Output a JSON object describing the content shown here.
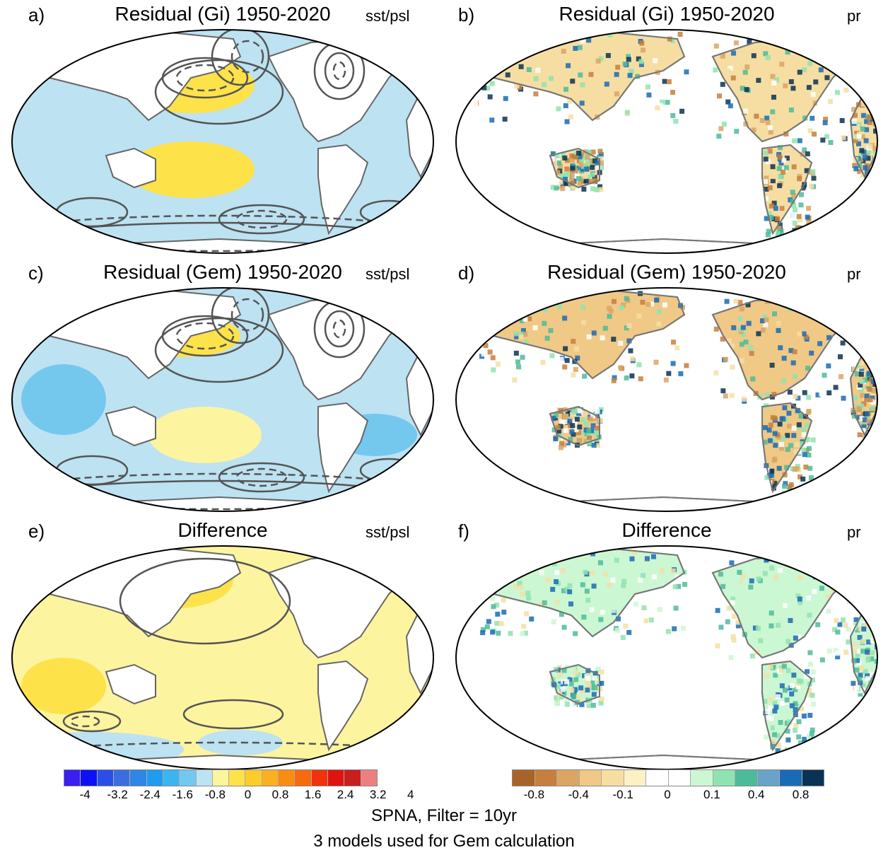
{
  "panels": [
    {
      "label": "a)",
      "title": "Residual (Gi) 1950-2020",
      "var": "sst/psl"
    },
    {
      "label": "b)",
      "title": "Residual (Gi) 1950-2020",
      "var": "pr"
    },
    {
      "label": "c)",
      "title": "Residual (Gem) 1950-2020",
      "var": "sst/psl"
    },
    {
      "label": "d)",
      "title": "Residual (Gem) 1950-2020",
      "var": "pr"
    },
    {
      "label": "e)",
      "title": "Difference",
      "var": "sst/psl"
    },
    {
      "label": "f)",
      "title": "Difference",
      "var": "pr"
    }
  ],
  "footer": {
    "line1": "SPNA, Filter = 10yr",
    "line2": "3 models used for Gem calculation"
  },
  "chart_data": [
    {
      "type": "heatmap",
      "title": "Residual (Gi) 1950-2020",
      "panel": "a)",
      "variable": "sst/psl",
      "description": "global SST shading with PSL contours"
    },
    {
      "type": "heatmap",
      "title": "Residual (Gi) 1950-2020",
      "panel": "b)",
      "variable": "pr"
    },
    {
      "type": "heatmap",
      "title": "Residual (Gem) 1950-2020",
      "panel": "c)",
      "variable": "sst/psl"
    },
    {
      "type": "heatmap",
      "title": "Residual (Gem) 1950-2020",
      "panel": "d)",
      "variable": "pr"
    },
    {
      "type": "heatmap",
      "title": "Difference",
      "panel": "e)",
      "variable": "sst/psl"
    },
    {
      "type": "heatmap",
      "title": "Difference",
      "panel": "f)",
      "variable": "pr"
    }
  ],
  "colorbars": {
    "sst": {
      "colors": [
        "#3a1ff0",
        "#0a12f5",
        "#2b4fe6",
        "#3a6ee0",
        "#2f86e6",
        "#1f9cf0",
        "#3ab5ef",
        "#74c8ee",
        "#bde2f2",
        "#fdf4a0",
        "#fde24a",
        "#fdcc2a",
        "#fbb020",
        "#fa8c12",
        "#f76a0e",
        "#f0330c",
        "#e0140e",
        "#c81f1f",
        "#ec8080"
      ],
      "ticks": [
        "-4",
        "-3.2",
        "-2.4",
        "-1.6",
        "-0.8",
        "0",
        "0.8",
        "1.6",
        "2.4",
        "3.2",
        "4"
      ]
    },
    "pr": {
      "colors": [
        "#a86428",
        "#c67f3e",
        "#dba565",
        "#f0c987",
        "#f6dea3",
        "#fcf1c3",
        "#ffffff",
        "#ffffff",
        "#ccf7d3",
        "#8fe3b0",
        "#4dbb9a",
        "#6aa2c8",
        "#1a6bb5",
        "#0a3254"
      ],
      "ticks": [
        "-0.8",
        "-0.4",
        "-0.1",
        "0",
        "0.1",
        "0.4",
        "0.8"
      ]
    }
  }
}
